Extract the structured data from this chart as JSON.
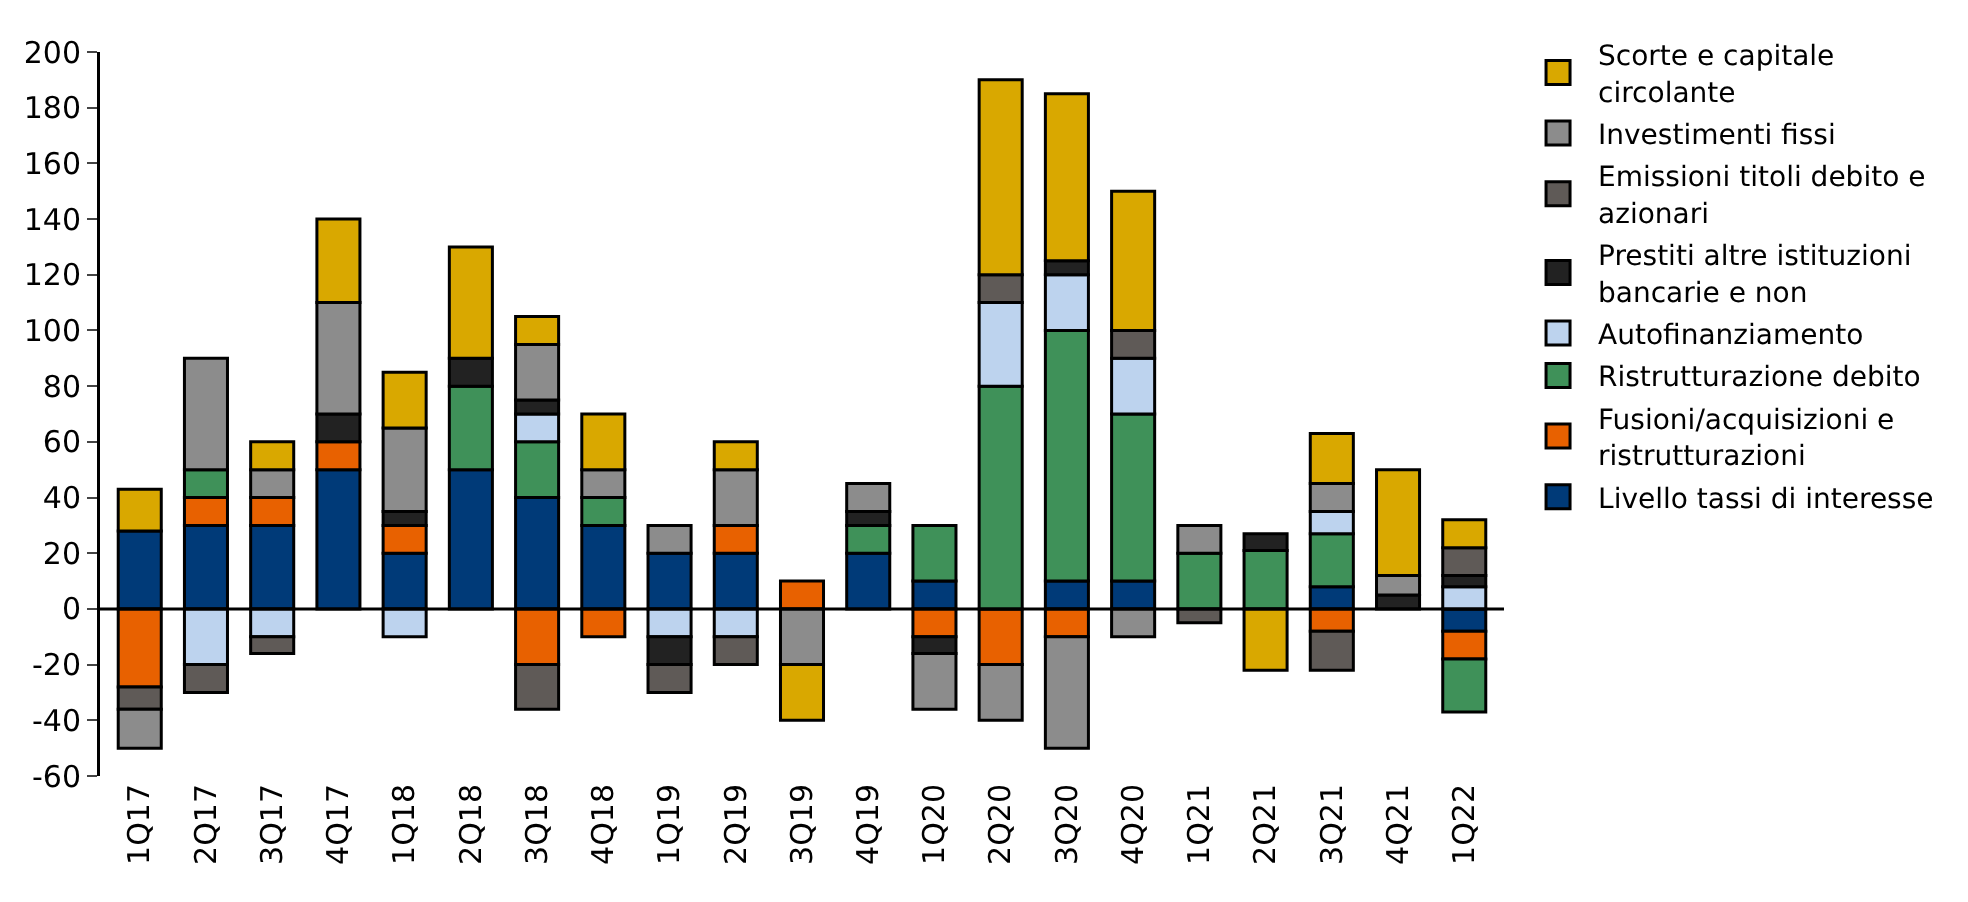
{
  "chart_data": {
    "type": "bar",
    "stacked": true,
    "categories": [
      "1Q17",
      "2Q17",
      "3Q17",
      "4Q17",
      "1Q18",
      "2Q18",
      "3Q18",
      "4Q18",
      "1Q19",
      "2Q19",
      "3Q19",
      "4Q19",
      "1Q20",
      "2Q20",
      "3Q20",
      "4Q20",
      "1Q21",
      "2Q21",
      "3Q21",
      "4Q21",
      "1Q22"
    ],
    "series": [
      {
        "name": "Livello tassi di interesse",
        "color": "#003a78",
        "values": [
          28,
          30,
          30,
          50,
          20,
          50,
          40,
          30,
          20,
          20,
          null,
          20,
          10,
          null,
          10,
          10,
          null,
          null,
          8,
          null,
          -8
        ]
      },
      {
        "name": "Fusioni/acquisizioni e ristrutturazioni",
        "color": "#e86100",
        "values": [
          -28,
          10,
          10,
          10,
          10,
          null,
          -20,
          -10,
          null,
          10,
          10,
          null,
          -10,
          -20,
          -10,
          null,
          null,
          null,
          -8,
          null,
          -10
        ]
      },
      {
        "name": "Ristrutturazione debito",
        "color": "#3f9159",
        "values": [
          null,
          10,
          null,
          null,
          null,
          30,
          20,
          10,
          null,
          null,
          null,
          10,
          20,
          80,
          90,
          60,
          20,
          21,
          19,
          null,
          -19
        ]
      },
      {
        "name": "Autofinanziamento",
        "color": "#bdd3ee",
        "values": [
          null,
          -20,
          -10,
          null,
          -10,
          null,
          10,
          null,
          -10,
          -10,
          null,
          null,
          null,
          30,
          20,
          20,
          null,
          null,
          8,
          null,
          8
        ]
      },
      {
        "name": "Prestiti altre istituzioni bancarie e non",
        "color": "#222222",
        "values": [
          null,
          null,
          null,
          10,
          5,
          10,
          5,
          null,
          -10,
          null,
          null,
          5,
          -6,
          null,
          5,
          null,
          null,
          6,
          null,
          5,
          4
        ]
      },
      {
        "name": "Emissioni titoli debito e azionari",
        "color": "#5f5a57",
        "values": [
          -8,
          -10,
          -6,
          null,
          null,
          null,
          -16,
          null,
          -10,
          -10,
          null,
          null,
          null,
          10,
          null,
          10,
          -5,
          null,
          -14,
          null,
          10
        ]
      },
      {
        "name": "Investimenti fissi",
        "color": "#8c8c8c",
        "values": [
          -14,
          40,
          10,
          40,
          30,
          null,
          20,
          10,
          10,
          20,
          -20,
          10,
          -20,
          -20,
          -40,
          -10,
          10,
          null,
          10,
          7,
          null
        ]
      },
      {
        "name": "Scorte e capitale circolante",
        "color": "#d9a800",
        "values": [
          15,
          null,
          10,
          30,
          20,
          40,
          10,
          20,
          null,
          10,
          -20,
          null,
          null,
          70,
          60,
          50,
          null,
          -22,
          18,
          38,
          10
        ]
      }
    ],
    "ylim": [
      -60,
      200
    ],
    "yticks": [
      -60,
      -40,
      -20,
      0,
      20,
      40,
      60,
      80,
      100,
      120,
      140,
      160,
      180,
      200
    ],
    "legend": "right"
  }
}
